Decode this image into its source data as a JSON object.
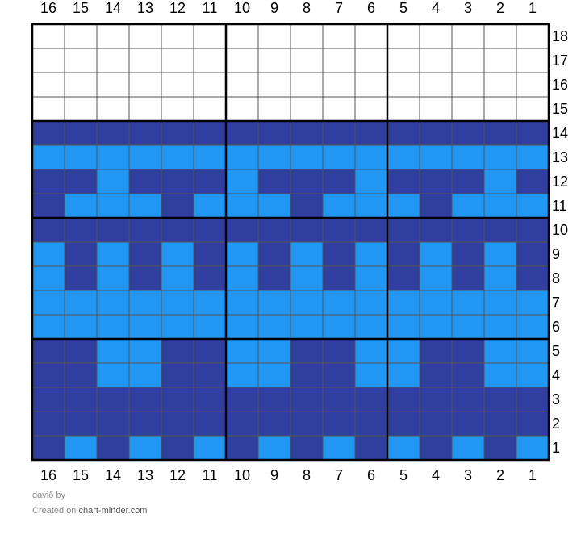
{
  "column_labels": [
    "16",
    "15",
    "14",
    "13",
    "12",
    "11",
    "10",
    "9",
    "8",
    "7",
    "6",
    "5",
    "4",
    "3",
    "2",
    "1"
  ],
  "rows": [
    {
      "label": "18",
      "cells": [
        "#ffffff",
        "#ffffff",
        "#ffffff",
        "#ffffff",
        "#ffffff",
        "#ffffff",
        "#ffffff",
        "#ffffff",
        "#ffffff",
        "#ffffff",
        "#ffffff",
        "#ffffff",
        "#ffffff",
        "#ffffff",
        "#ffffff",
        "#ffffff"
      ]
    },
    {
      "label": "17",
      "cells": [
        "#ffffff",
        "#ffffff",
        "#ffffff",
        "#ffffff",
        "#ffffff",
        "#ffffff",
        "#ffffff",
        "#ffffff",
        "#ffffff",
        "#ffffff",
        "#ffffff",
        "#ffffff",
        "#ffffff",
        "#ffffff",
        "#ffffff",
        "#ffffff"
      ]
    },
    {
      "label": "16",
      "cells": [
        "#ffffff",
        "#ffffff",
        "#ffffff",
        "#ffffff",
        "#ffffff",
        "#ffffff",
        "#ffffff",
        "#ffffff",
        "#ffffff",
        "#ffffff",
        "#ffffff",
        "#ffffff",
        "#ffffff",
        "#ffffff",
        "#ffffff",
        "#ffffff"
      ]
    },
    {
      "label": "15",
      "cells": [
        "#ffffff",
        "#ffffff",
        "#ffffff",
        "#ffffff",
        "#ffffff",
        "#ffffff",
        "#ffffff",
        "#ffffff",
        "#ffffff",
        "#ffffff",
        "#ffffff",
        "#ffffff",
        "#ffffff",
        "#ffffff",
        "#ffffff",
        "#ffffff"
      ]
    },
    {
      "label": "14",
      "cells": [
        "#303f9f",
        "#303f9f",
        "#303f9f",
        "#303f9f",
        "#303f9f",
        "#303f9f",
        "#303f9f",
        "#303f9f",
        "#303f9f",
        "#303f9f",
        "#303f9f",
        "#303f9f",
        "#303f9f",
        "#303f9f",
        "#303f9f",
        "#303f9f"
      ]
    },
    {
      "label": "13",
      "cells": [
        "#2196f3",
        "#2196f3",
        "#2196f3",
        "#2196f3",
        "#2196f3",
        "#2196f3",
        "#2196f3",
        "#2196f3",
        "#2196f3",
        "#2196f3",
        "#2196f3",
        "#2196f3",
        "#2196f3",
        "#2196f3",
        "#2196f3",
        "#2196f3"
      ]
    },
    {
      "label": "12",
      "cells": [
        "#303f9f",
        "#303f9f",
        "#2196f3",
        "#303f9f",
        "#303f9f",
        "#303f9f",
        "#2196f3",
        "#303f9f",
        "#303f9f",
        "#303f9f",
        "#2196f3",
        "#303f9f",
        "#303f9f",
        "#303f9f",
        "#2196f3",
        "#303f9f"
      ]
    },
    {
      "label": "11",
      "cells": [
        "#303f9f",
        "#2196f3",
        "#2196f3",
        "#2196f3",
        "#303f9f",
        "#2196f3",
        "#2196f3",
        "#2196f3",
        "#303f9f",
        "#2196f3",
        "#2196f3",
        "#2196f3",
        "#303f9f",
        "#2196f3",
        "#2196f3",
        "#2196f3"
      ]
    },
    {
      "label": "10",
      "cells": [
        "#303f9f",
        "#303f9f",
        "#303f9f",
        "#303f9f",
        "#303f9f",
        "#303f9f",
        "#303f9f",
        "#303f9f",
        "#303f9f",
        "#303f9f",
        "#303f9f",
        "#303f9f",
        "#303f9f",
        "#303f9f",
        "#303f9f",
        "#303f9f"
      ]
    },
    {
      "label": "9",
      "cells": [
        "#2196f3",
        "#303f9f",
        "#2196f3",
        "#303f9f",
        "#2196f3",
        "#303f9f",
        "#2196f3",
        "#303f9f",
        "#2196f3",
        "#303f9f",
        "#2196f3",
        "#303f9f",
        "#2196f3",
        "#303f9f",
        "#2196f3",
        "#303f9f"
      ]
    },
    {
      "label": "8",
      "cells": [
        "#2196f3",
        "#303f9f",
        "#2196f3",
        "#303f9f",
        "#2196f3",
        "#303f9f",
        "#2196f3",
        "#303f9f",
        "#2196f3",
        "#303f9f",
        "#2196f3",
        "#303f9f",
        "#2196f3",
        "#303f9f",
        "#2196f3",
        "#303f9f"
      ]
    },
    {
      "label": "7",
      "cells": [
        "#2196f3",
        "#2196f3",
        "#2196f3",
        "#2196f3",
        "#2196f3",
        "#2196f3",
        "#2196f3",
        "#2196f3",
        "#2196f3",
        "#2196f3",
        "#2196f3",
        "#2196f3",
        "#2196f3",
        "#2196f3",
        "#2196f3",
        "#2196f3"
      ]
    },
    {
      "label": "6",
      "cells": [
        "#2196f3",
        "#2196f3",
        "#2196f3",
        "#2196f3",
        "#2196f3",
        "#2196f3",
        "#2196f3",
        "#2196f3",
        "#2196f3",
        "#2196f3",
        "#2196f3",
        "#2196f3",
        "#2196f3",
        "#2196f3",
        "#2196f3",
        "#2196f3"
      ]
    },
    {
      "label": "5",
      "cells": [
        "#303f9f",
        "#303f9f",
        "#2196f3",
        "#2196f3",
        "#303f9f",
        "#303f9f",
        "#2196f3",
        "#2196f3",
        "#303f9f",
        "#303f9f",
        "#2196f3",
        "#2196f3",
        "#303f9f",
        "#303f9f",
        "#2196f3",
        "#2196f3"
      ]
    },
    {
      "label": "4",
      "cells": [
        "#303f9f",
        "#303f9f",
        "#2196f3",
        "#2196f3",
        "#303f9f",
        "#303f9f",
        "#2196f3",
        "#2196f3",
        "#303f9f",
        "#303f9f",
        "#2196f3",
        "#2196f3",
        "#303f9f",
        "#303f9f",
        "#2196f3",
        "#2196f3"
      ]
    },
    {
      "label": "3",
      "cells": [
        "#303f9f",
        "#303f9f",
        "#303f9f",
        "#303f9f",
        "#303f9f",
        "#303f9f",
        "#303f9f",
        "#303f9f",
        "#303f9f",
        "#303f9f",
        "#303f9f",
        "#303f9f",
        "#303f9f",
        "#303f9f",
        "#303f9f",
        "#303f9f"
      ]
    },
    {
      "label": "2",
      "cells": [
        "#303f9f",
        "#303f9f",
        "#303f9f",
        "#303f9f",
        "#303f9f",
        "#303f9f",
        "#303f9f",
        "#303f9f",
        "#303f9f",
        "#303f9f",
        "#303f9f",
        "#303f9f",
        "#303f9f",
        "#303f9f",
        "#303f9f",
        "#303f9f"
      ]
    },
    {
      "label": "1",
      "cells": [
        "#303f9f",
        "#2196f3",
        "#303f9f",
        "#2196f3",
        "#303f9f",
        "#2196f3",
        "#303f9f",
        "#2196f3",
        "#303f9f",
        "#2196f3",
        "#303f9f",
        "#2196f3",
        "#303f9f",
        "#2196f3",
        "#303f9f",
        "#2196f3"
      ]
    }
  ],
  "footer": {
    "author": "davið",
    "by": "by",
    "created_on": "Created on",
    "site": "chart-minder.com"
  }
}
